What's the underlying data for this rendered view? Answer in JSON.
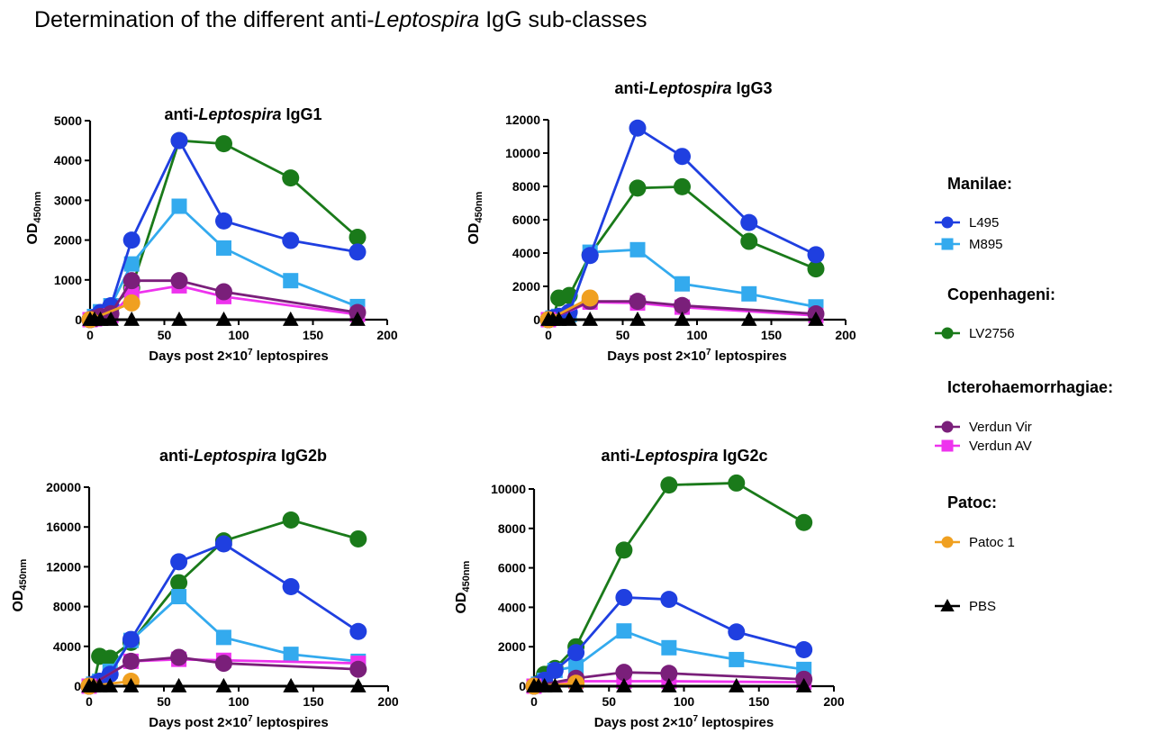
{
  "page_title": {
    "prefix": "Determination of the different anti-",
    "italic": "Leptospira",
    "suffix": " IgG sub-classes"
  },
  "legend": {
    "groups": [
      {
        "title": "Manilae:",
        "items": [
          {
            "series_key": "L495",
            "label": "L495"
          },
          {
            "series_key": "M895",
            "label": "M895"
          }
        ]
      },
      {
        "title": "Copenhageni:",
        "items": [
          {
            "series_key": "LV2756",
            "label": "LV2756"
          }
        ]
      },
      {
        "title": "Icterohaemorrhagiae:",
        "items": [
          {
            "series_key": "VerdunVir",
            "label": "Verdun Vir"
          },
          {
            "series_key": "VerdunAV",
            "label": "Verdun AV"
          }
        ]
      },
      {
        "title": "Patoc:",
        "items": [
          {
            "series_key": "Patoc1",
            "label": "Patoc 1"
          }
        ]
      },
      {
        "title": "",
        "items": [
          {
            "series_key": "PBS",
            "label": "PBS"
          }
        ]
      }
    ]
  },
  "series_style": {
    "L495": {
      "color": "#1f3fe0",
      "marker": "circle"
    },
    "M895": {
      "color": "#33aaee",
      "marker": "square"
    },
    "LV2756": {
      "color": "#1a7a1a",
      "marker": "circle"
    },
    "VerdunVir": {
      "color": "#7a1f7a",
      "marker": "circle"
    },
    "VerdunAV": {
      "color": "#ee33ee",
      "marker": "square"
    },
    "Patoc1": {
      "color": "#f0a020",
      "marker": "circle"
    },
    "PBS": {
      "color": "#000000",
      "marker": "triangle"
    }
  },
  "chart_data": [
    {
      "type": "line",
      "title_prefix": "anti-",
      "title_italic": "Leptospira",
      "title_suffix": " IgG1",
      "xlabel_main": "Days post 2×10",
      "xlabel_sup": "7",
      "xlabel_end": " leptospires",
      "ylabel_main": "OD",
      "ylabel_sub": "450nm",
      "xlim": [
        0,
        200
      ],
      "ylim": [
        0,
        5000
      ],
      "xticks": [
        "0",
        "50",
        "100",
        "150",
        "200"
      ],
      "yticks": [
        "0",
        "1000",
        "2000",
        "3000",
        "4000",
        "5000"
      ],
      "series": [
        {
          "key": "LV2756",
          "name": "LV2756",
          "x": [
            0,
            3,
            7,
            14,
            28,
            60,
            90,
            135,
            180
          ],
          "y": [
            0,
            50,
            150,
            300,
            800,
            4500,
            4420,
            3560,
            2070
          ]
        },
        {
          "key": "M895",
          "name": "M895",
          "x": [
            0,
            3,
            7,
            14,
            28,
            60,
            90,
            135,
            180
          ],
          "y": [
            0,
            80,
            200,
            350,
            1400,
            2850,
            1800,
            980,
            330
          ]
        },
        {
          "key": "L495",
          "name": "L495",
          "x": [
            0,
            3,
            7,
            14,
            28,
            60,
            90,
            135,
            180
          ],
          "y": [
            0,
            60,
            180,
            350,
            2000,
            4500,
            2480,
            1990,
            1700
          ]
        },
        {
          "key": "VerdunAV",
          "name": "Verdun AV",
          "x": [
            0,
            3,
            7,
            14,
            28,
            60,
            90,
            180
          ],
          "y": [
            0,
            20,
            50,
            100,
            650,
            850,
            580,
            130
          ]
        },
        {
          "key": "VerdunVir",
          "name": "Verdun Vir",
          "x": [
            0,
            3,
            7,
            14,
            28,
            60,
            90,
            180
          ],
          "y": [
            0,
            30,
            80,
            150,
            980,
            980,
            700,
            180
          ]
        },
        {
          "key": "Patoc1",
          "name": "Patoc 1",
          "x": [
            0,
            28
          ],
          "y": [
            0,
            420
          ]
        },
        {
          "key": "PBS",
          "name": "PBS",
          "x": [
            0,
            3,
            7,
            14,
            28,
            60,
            90,
            135,
            180
          ],
          "y": [
            0,
            0,
            0,
            0,
            0,
            0,
            0,
            0,
            0
          ]
        }
      ]
    },
    {
      "type": "line",
      "title_prefix": "anti-",
      "title_italic": "Leptospira",
      "title_suffix": " IgG3",
      "xlabel_main": "Days post 2×10",
      "xlabel_sup": "7",
      "xlabel_end": " leptospires",
      "ylabel_main": "OD",
      "ylabel_sub": "450nm",
      "xlim": [
        0,
        200
      ],
      "ylim": [
        0,
        12000
      ],
      "xticks": [
        "0",
        "50",
        "100",
        "150",
        "200"
      ],
      "yticks": [
        "0",
        "2000",
        "4000",
        "6000",
        "8000",
        "10000",
        "12000"
      ],
      "series": [
        {
          "key": "LV2756",
          "name": "LV2756",
          "x": [
            0,
            3,
            7,
            14,
            28,
            60,
            90,
            135,
            180
          ],
          "y": [
            0,
            100,
            1300,
            1450,
            3900,
            7900,
            7980,
            4700,
            3050
          ]
        },
        {
          "key": "M895",
          "name": "M895",
          "x": [
            0,
            3,
            7,
            14,
            28,
            60,
            90,
            135,
            180
          ],
          "y": [
            0,
            100,
            200,
            300,
            4050,
            4200,
            2150,
            1550,
            770
          ]
        },
        {
          "key": "L495",
          "name": "L495",
          "x": [
            0,
            3,
            7,
            14,
            28,
            60,
            90,
            135,
            180
          ],
          "y": [
            0,
            100,
            200,
            450,
            3850,
            11500,
            9800,
            5830,
            3900
          ]
        },
        {
          "key": "VerdunAV",
          "name": "Verdun AV",
          "x": [
            0,
            28,
            60,
            90,
            180
          ],
          "y": [
            0,
            1050,
            1000,
            750,
            250
          ]
        },
        {
          "key": "VerdunVir",
          "name": "Verdun Vir",
          "x": [
            0,
            28,
            60,
            90,
            180
          ],
          "y": [
            0,
            1100,
            1100,
            850,
            350
          ]
        },
        {
          "key": "Patoc1",
          "name": "Patoc 1",
          "x": [
            0,
            28
          ],
          "y": [
            0,
            1300
          ]
        },
        {
          "key": "PBS",
          "name": "PBS",
          "x": [
            0,
            3,
            7,
            14,
            28,
            60,
            90,
            135,
            180
          ],
          "y": [
            0,
            0,
            0,
            0,
            0,
            0,
            0,
            0,
            0
          ]
        }
      ]
    },
    {
      "type": "line",
      "title_prefix": "anti-",
      "title_italic": "Leptospira",
      "title_suffix": " IgG2b",
      "xlabel_main": "Days post 2×10",
      "xlabel_sup": "7",
      "xlabel_end": " leptospires",
      "ylabel_main": "OD",
      "ylabel_sub": "450nm",
      "xlim": [
        0,
        200
      ],
      "ylim": [
        0,
        20000
      ],
      "xticks": [
        "0",
        "50",
        "100",
        "150",
        "200"
      ],
      "yticks": [
        "0",
        "4000",
        "8000",
        "12000",
        "16000",
        "20000"
      ],
      "series": [
        {
          "key": "LV2756",
          "name": "LV2756",
          "x": [
            0,
            3,
            7,
            14,
            28,
            60,
            90,
            135,
            180
          ],
          "y": [
            0,
            200,
            3000,
            2800,
            4400,
            10400,
            14600,
            16700,
            14800
          ]
        },
        {
          "key": "M895",
          "name": "M895",
          "x": [
            0,
            3,
            7,
            14,
            28,
            60,
            90,
            135,
            180
          ],
          "y": [
            0,
            200,
            500,
            1500,
            4600,
            9000,
            4900,
            3200,
            2500
          ]
        },
        {
          "key": "L495",
          "name": "L495",
          "x": [
            0,
            3,
            7,
            14,
            28,
            60,
            90,
            135,
            180
          ],
          "y": [
            0,
            200,
            500,
            1200,
            4700,
            12500,
            14300,
            10000,
            5500
          ]
        },
        {
          "key": "VerdunAV",
          "name": "Verdun AV",
          "x": [
            0,
            28,
            60,
            90,
            180
          ],
          "y": [
            0,
            2500,
            2700,
            2600,
            2300
          ]
        },
        {
          "key": "VerdunVir",
          "name": "Verdun Vir",
          "x": [
            0,
            28,
            60,
            90,
            180
          ],
          "y": [
            0,
            2500,
            2900,
            2300,
            1700
          ]
        },
        {
          "key": "Patoc1",
          "name": "Patoc 1",
          "x": [
            0,
            28
          ],
          "y": [
            0,
            500
          ]
        },
        {
          "key": "PBS",
          "name": "PBS",
          "x": [
            0,
            3,
            7,
            14,
            28,
            60,
            90,
            135,
            180
          ],
          "y": [
            0,
            0,
            0,
            0,
            0,
            0,
            0,
            0,
            0
          ]
        }
      ]
    },
    {
      "type": "line",
      "title_prefix": "anti-",
      "title_italic": "Leptospira",
      "title_suffix": " IgG2c",
      "xlabel_main": "Days post 2×10",
      "xlabel_sup": "7",
      "xlabel_end": " leptospires",
      "ylabel_main": "OD",
      "ylabel_sub": "450nm",
      "xlim": [
        0,
        200
      ],
      "ylim": [
        0,
        10000
      ],
      "xticks": [
        "0",
        "50",
        "100",
        "150",
        "200"
      ],
      "yticks": [
        "0",
        "2000",
        "4000",
        "6000",
        "8000",
        "10000"
      ],
      "series": [
        {
          "key": "LV2756",
          "name": "LV2756",
          "x": [
            0,
            3,
            7,
            14,
            28,
            60,
            90,
            135,
            180
          ],
          "y": [
            0,
            150,
            600,
            900,
            2000,
            6900,
            10200,
            10300,
            8300
          ]
        },
        {
          "key": "M895",
          "name": "M895",
          "x": [
            0,
            3,
            7,
            14,
            28,
            60,
            90,
            135,
            180
          ],
          "y": [
            0,
            100,
            300,
            800,
            1000,
            2800,
            1950,
            1350,
            850
          ]
        },
        {
          "key": "L495",
          "name": "L495",
          "x": [
            0,
            3,
            7,
            14,
            28,
            60,
            90,
            135,
            180
          ],
          "y": [
            0,
            100,
            300,
            800,
            1700,
            4500,
            4400,
            2750,
            1850
          ]
        },
        {
          "key": "VerdunAV",
          "name": "Verdun AV",
          "x": [
            0,
            28,
            60,
            90,
            180
          ],
          "y": [
            0,
            250,
            250,
            250,
            200
          ]
        },
        {
          "key": "VerdunVir",
          "name": "Verdun Vir",
          "x": [
            0,
            28,
            60,
            90,
            180
          ],
          "y": [
            0,
            400,
            700,
            650,
            350
          ]
        },
        {
          "key": "Patoc1",
          "name": "Patoc 1",
          "x": [
            0,
            28
          ],
          "y": [
            0,
            150
          ]
        },
        {
          "key": "PBS",
          "name": "PBS",
          "x": [
            0,
            3,
            7,
            14,
            28,
            60,
            90,
            135,
            180
          ],
          "y": [
            0,
            0,
            0,
            0,
            0,
            0,
            0,
            0,
            0
          ]
        }
      ]
    }
  ]
}
